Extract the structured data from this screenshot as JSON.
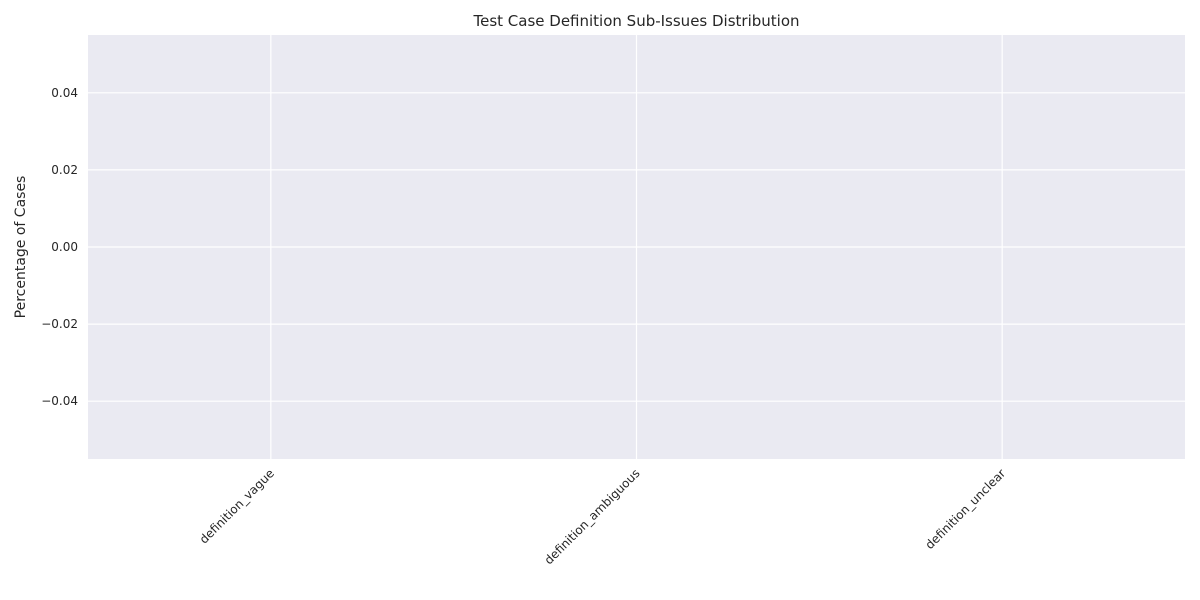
{
  "chart_data": {
    "type": "bar",
    "title": "Test Case Definition Sub-Issues Distribution",
    "xlabel": "",
    "ylabel": "Percentage of Cases",
    "categories": [
      "definition_vague",
      "definition_ambiguous",
      "definition_unclear"
    ],
    "values": [
      0,
      0,
      0
    ],
    "ylim": [
      -0.055,
      0.055
    ],
    "yticks": [
      -0.04,
      -0.02,
      0.0,
      0.02,
      0.04
    ],
    "ytick_labels": [
      "−0.04",
      "−0.02",
      "0.00",
      "0.02",
      "0.04"
    ],
    "grid": true,
    "style": {
      "plot_background": "#eaeaf2",
      "grid_color": "#ffffff",
      "bar_color": "#4c72b0"
    }
  }
}
